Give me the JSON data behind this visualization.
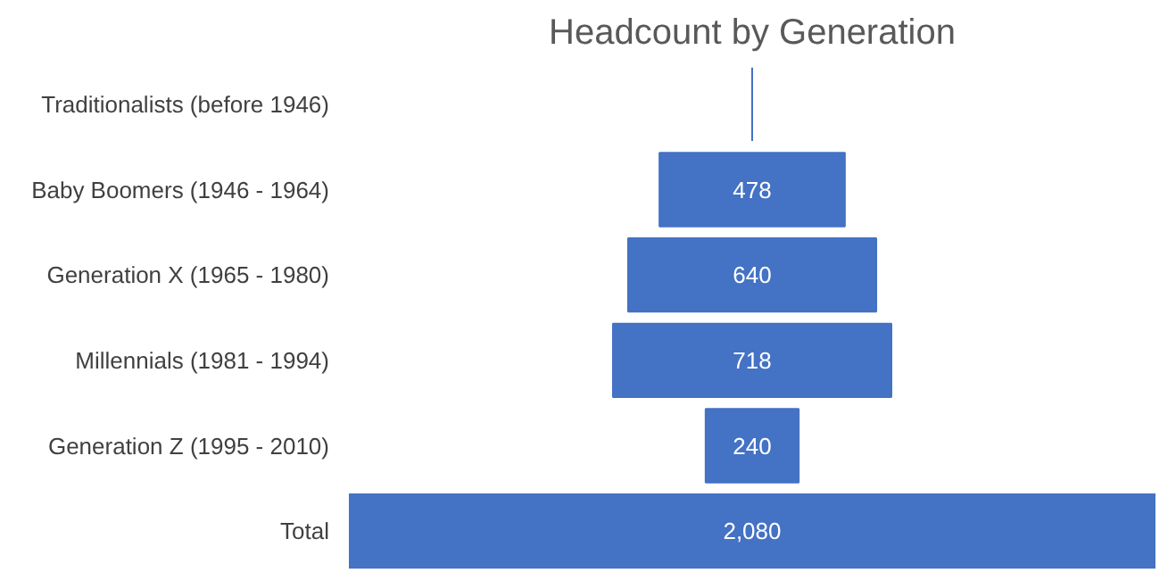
{
  "chart_data": {
    "type": "other",
    "title": "Headcount by Generation",
    "categories": [
      "Traditionalists (before 1946)",
      "Baby Boomers (1946 - 1964)",
      "Generation X (1965 - 1980)",
      "Millennials (1981 - 1994)",
      "Generation Z (1995 - 2010)",
      "Total"
    ],
    "values": [
      null,
      478,
      640,
      718,
      240,
      2080
    ],
    "value_labels": [
      null,
      "478",
      "640",
      "718",
      "240",
      "2,080"
    ],
    "color": "#4472c4"
  }
}
